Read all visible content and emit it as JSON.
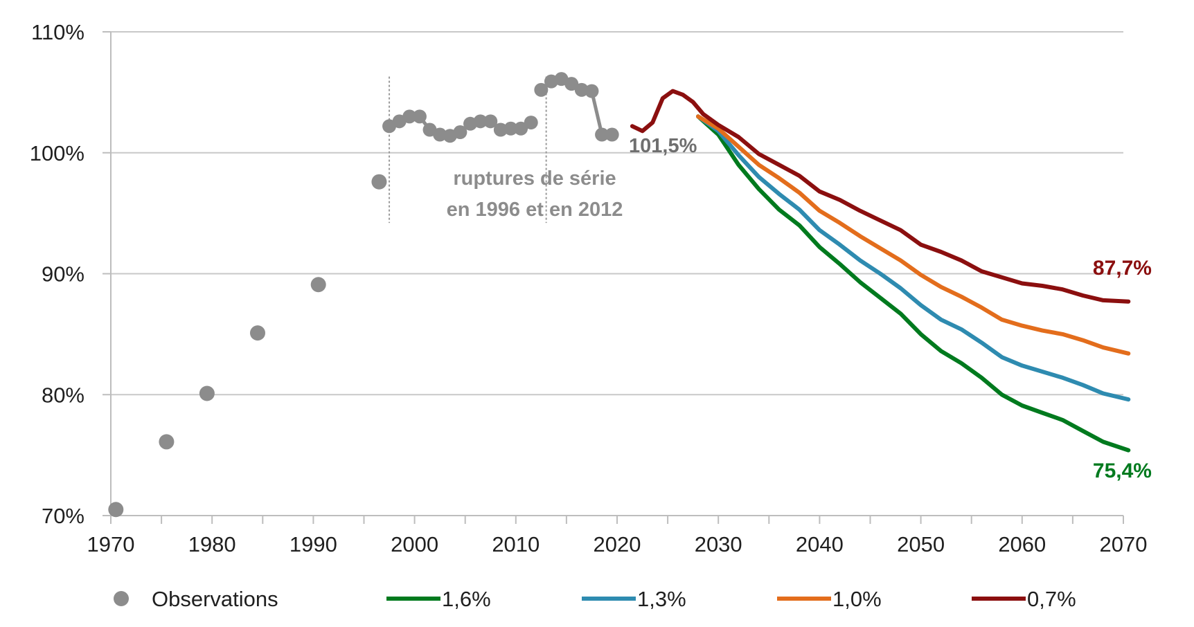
{
  "chart_data": {
    "type": "line",
    "title": "",
    "xlabel": "",
    "ylabel": "",
    "xlim": [
      1970,
      2070
    ],
    "ylim": [
      70,
      110
    ],
    "x_ticks": [
      1970,
      1980,
      1990,
      2000,
      2010,
      2020,
      2030,
      2040,
      2050,
      2060,
      2070
    ],
    "y_ticks": [
      70,
      80,
      90,
      100,
      110
    ],
    "y_tick_labels": [
      "70%",
      "80%",
      "90%",
      "100%",
      "110%"
    ],
    "grid": "horizontal",
    "legend_position": "bottom",
    "observations": {
      "name": "Observations",
      "color": "#8c8c8c",
      "isolated": [
        {
          "x": 1970.5,
          "y": 70.5
        },
        {
          "x": 1975.5,
          "y": 76.1
        },
        {
          "x": 1979.5,
          "y": 80.1
        },
        {
          "x": 1984.5,
          "y": 85.1
        },
        {
          "x": 1990.5,
          "y": 89.1
        },
        {
          "x": 1996.5,
          "y": 97.6
        }
      ],
      "segments": [
        [
          {
            "x": 1997.5,
            "y": 102.2
          },
          {
            "x": 1998.5,
            "y": 102.6
          },
          {
            "x": 1999.5,
            "y": 103.0
          },
          {
            "x": 2000.5,
            "y": 103.0
          },
          {
            "x": 2001.5,
            "y": 101.9
          },
          {
            "x": 2002.5,
            "y": 101.5
          },
          {
            "x": 2003.5,
            "y": 101.4
          },
          {
            "x": 2004.5,
            "y": 101.7
          },
          {
            "x": 2005.5,
            "y": 102.4
          },
          {
            "x": 2006.5,
            "y": 102.6
          },
          {
            "x": 2007.5,
            "y": 102.6
          },
          {
            "x": 2008.5,
            "y": 101.9
          },
          {
            "x": 2009.5,
            "y": 102.0
          },
          {
            "x": 2010.5,
            "y": 102.0
          },
          {
            "x": 2011.5,
            "y": 102.5
          }
        ],
        [
          {
            "x": 2012.5,
            "y": 105.2
          },
          {
            "x": 2013.5,
            "y": 105.9
          },
          {
            "x": 2014.5,
            "y": 106.1
          },
          {
            "x": 2015.5,
            "y": 105.7
          },
          {
            "x": 2016.5,
            "y": 105.2
          },
          {
            "x": 2017.5,
            "y": 105.1
          },
          {
            "x": 2018.5,
            "y": 101.5
          },
          {
            "x": 2019.5,
            "y": 101.5
          }
        ]
      ]
    },
    "breaks": [
      1997.5,
      2013.0
    ],
    "break_annotation": [
      "ruptures de série",
      "en 1996 et en 2012"
    ],
    "start_label": "101,5%",
    "series": [
      {
        "name": "1,6%",
        "color": "#007a1e",
        "end_label": "75,4%",
        "x": [
          2028,
          2030,
          2032,
          2034,
          2036,
          2038,
          2040,
          2042,
          2044,
          2046,
          2048,
          2050,
          2052,
          2054,
          2056,
          2058,
          2060,
          2062,
          2064,
          2066,
          2068,
          2070.5
        ],
        "y": [
          103.0,
          101.5,
          99.0,
          97.0,
          95.3,
          94.0,
          92.2,
          90.8,
          89.3,
          88.0,
          86.7,
          85.0,
          83.6,
          82.6,
          81.4,
          80.0,
          79.1,
          78.5,
          77.9,
          77.0,
          76.1,
          75.4
        ]
      },
      {
        "name": "1,3%",
        "color": "#2e8bb0",
        "end_label": "",
        "x": [
          2028,
          2030,
          2032,
          2034,
          2036,
          2038,
          2040,
          2042,
          2044,
          2046,
          2048,
          2050,
          2052,
          2054,
          2056,
          2058,
          2060,
          2062,
          2064,
          2066,
          2068,
          2070.5
        ],
        "y": [
          103.0,
          101.8,
          99.8,
          98.0,
          96.6,
          95.3,
          93.6,
          92.4,
          91.1,
          90.0,
          88.8,
          87.4,
          86.2,
          85.4,
          84.3,
          83.1,
          82.4,
          81.9,
          81.4,
          80.8,
          80.1,
          79.6
        ]
      },
      {
        "name": "1,0%",
        "color": "#e36d1c",
        "end_label": "",
        "x": [
          2028,
          2030,
          2032,
          2034,
          2036,
          2038,
          2040,
          2042,
          2044,
          2046,
          2048,
          2050,
          2052,
          2054,
          2056,
          2058,
          2060,
          2062,
          2064,
          2066,
          2068,
          2070.5
        ],
        "y": [
          103.0,
          102.0,
          100.5,
          99.0,
          97.9,
          96.7,
          95.2,
          94.2,
          93.1,
          92.1,
          91.1,
          89.9,
          88.9,
          88.1,
          87.2,
          86.2,
          85.7,
          85.3,
          85.0,
          84.5,
          83.9,
          83.4
        ]
      },
      {
        "name": "0,7%",
        "color": "#8b0f0f",
        "end_label": "87,7%",
        "x": [
          2021.5,
          2022.5,
          2023.5,
          2024.5,
          2025.5,
          2026.5,
          2027.5,
          2028.5,
          2030,
          2032,
          2034,
          2036,
          2038,
          2040,
          2042,
          2044,
          2046,
          2048,
          2050,
          2052,
          2054,
          2056,
          2058,
          2060,
          2062,
          2064,
          2066,
          2068,
          2070.5
        ],
        "y": [
          102.2,
          101.8,
          102.5,
          104.5,
          105.1,
          104.8,
          104.2,
          103.2,
          102.3,
          101.3,
          99.9,
          99.0,
          98.1,
          96.8,
          96.1,
          95.2,
          94.4,
          93.6,
          92.4,
          91.8,
          91.1,
          90.2,
          89.7,
          89.2,
          89.0,
          88.7,
          88.2,
          87.8,
          87.7
        ]
      }
    ]
  }
}
